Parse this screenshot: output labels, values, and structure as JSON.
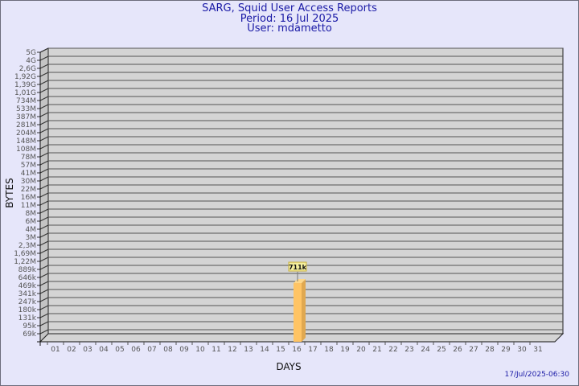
{
  "header": {
    "title": "SARG, Squid User Access Reports",
    "period": "Period: 16 Jul 2025",
    "user": "User: mdametto"
  },
  "footer": {
    "timestamp": "17/Jul/2025-06:30"
  },
  "chart_data": {
    "type": "bar",
    "xlabel": "DAYS",
    "ylabel": "BYTES",
    "y_scale": "log",
    "y_tick_labels": [
      "5G",
      "4G",
      "2,6G",
      "1,92G",
      "1,39G",
      "1,01G",
      "734M",
      "533M",
      "387M",
      "281M",
      "204M",
      "148M",
      "108M",
      "78M",
      "57M",
      "41M",
      "30M",
      "22M",
      "16M",
      "11M",
      "8M",
      "6M",
      "4M",
      "3M",
      "2,3M",
      "1,69M",
      "1,22M",
      "889k",
      "646k",
      "469k",
      "341k",
      "247k",
      "180k",
      "131k",
      "95k",
      "69k"
    ],
    "categories": [
      "01",
      "02",
      "03",
      "04",
      "05",
      "06",
      "07",
      "08",
      "09",
      "10",
      "11",
      "12",
      "13",
      "14",
      "15",
      "16",
      "17",
      "18",
      "19",
      "20",
      "21",
      "22",
      "23",
      "24",
      "25",
      "26",
      "27",
      "28",
      "29",
      "30",
      "31"
    ],
    "values": [
      null,
      null,
      null,
      null,
      null,
      null,
      null,
      null,
      null,
      null,
      null,
      null,
      null,
      null,
      null,
      711000,
      null,
      null,
      null,
      null,
      null,
      null,
      null,
      null,
      null,
      null,
      null,
      null,
      null,
      null,
      null
    ],
    "data_labels": {
      "16": "711k"
    },
    "grid": true,
    "colors": {
      "bar": "#ffc464",
      "bar_side": "#e0a850",
      "wall": "#d4d4d4",
      "grid": "#555555",
      "label_box": "#f4ee9c"
    }
  }
}
